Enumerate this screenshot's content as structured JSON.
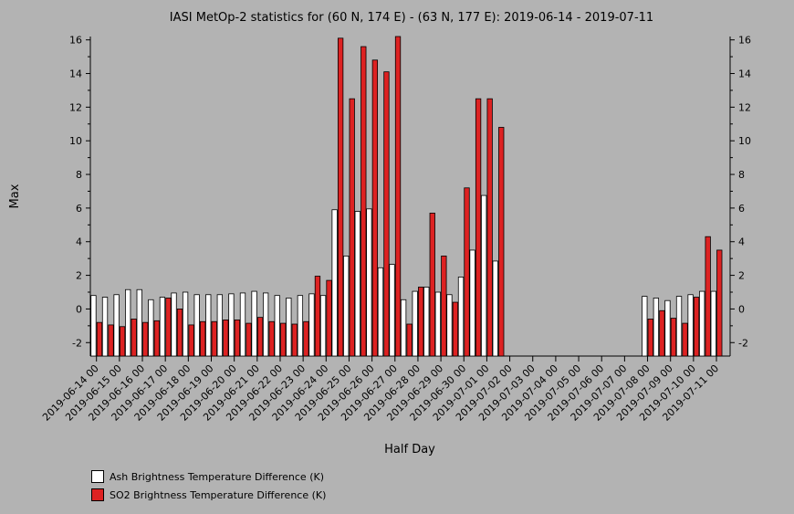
{
  "chart_data": {
    "type": "bar",
    "title": "IASI MetOp-2 statistics for (60 N, 174 E) - (63 N, 177 E): 2019-06-14 - 2019-07-11",
    "xlabel": "Half Day",
    "ylabel": "Max",
    "ylim": [
      -2.8,
      16.2
    ],
    "yticks": [
      -2,
      0,
      2,
      4,
      6,
      8,
      10,
      12,
      14,
      16
    ],
    "x_tick_labels": [
      "2019-06-14 00",
      "2019-06-15 00",
      "2019-06-16 00",
      "2019-06-17 00",
      "2019-06-18 00",
      "2019-06-19 00",
      "2019-06-20 00",
      "2019-06-21 00",
      "2019-06-22 00",
      "2019-06-23 00",
      "2019-06-24 00",
      "2019-06-25 00",
      "2019-06-26 00",
      "2019-06-27 00",
      "2019-06-28 00",
      "2019-06-29 00",
      "2019-06-30 00",
      "2019-07-01 00",
      "2019-07-02 00",
      "2019-07-03 00",
      "2019-07-04 00",
      "2019-07-05 00",
      "2019-07-06 00",
      "2019-07-07 00",
      "2019-07-08 00",
      "2019-07-09 00",
      "2019-07-10 00",
      "2019-07-11 00"
    ],
    "series": [
      {
        "name": "Ash Brightness Temperature Difference (K)",
        "color": "#ffffff",
        "values": [
          0.8,
          0.7,
          0.85,
          1.15,
          1.15,
          0.55,
          0.7,
          0.95,
          1.0,
          0.85,
          0.85,
          0.85,
          0.9,
          0.95,
          1.05,
          0.95,
          0.8,
          0.65,
          0.8,
          0.9,
          0.8,
          5.9,
          3.15,
          5.8,
          5.95,
          2.45,
          2.65,
          0.55,
          1.05,
          1.3,
          1.0,
          0.85,
          1.9,
          3.5,
          6.75,
          2.85,
          null,
          null,
          null,
          null,
          null,
          null,
          null,
          null,
          null,
          null,
          null,
          null,
          0.75,
          0.65,
          0.5,
          0.75,
          0.85,
          1.05,
          1.05
        ]
      },
      {
        "name": "SO2 Brightness Temperature Difference (K)",
        "color": "#dd2222",
        "values": [
          -0.8,
          -0.95,
          -1.05,
          -0.6,
          -0.8,
          -0.7,
          0.65,
          0.0,
          -0.95,
          -0.75,
          -0.75,
          -0.65,
          -0.65,
          -0.85,
          -0.5,
          -0.75,
          -0.85,
          -0.9,
          -0.75,
          1.95,
          1.7,
          16.1,
          12.5,
          15.6,
          14.8,
          14.1,
          16.2,
          -0.9,
          1.3,
          5.7,
          3.15,
          0.4,
          7.2,
          12.5,
          12.5,
          10.8,
          null,
          null,
          null,
          null,
          null,
          null,
          null,
          null,
          null,
          null,
          null,
          null,
          -0.6,
          -0.1,
          -0.55,
          -0.85,
          0.7,
          4.3,
          3.5
        ]
      }
    ],
    "legend_position": "bottom-left"
  }
}
